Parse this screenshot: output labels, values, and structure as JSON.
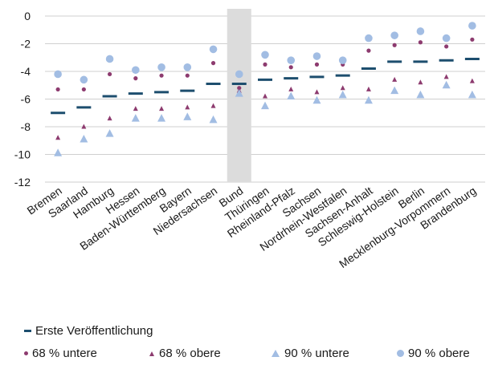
{
  "chart_data": {
    "type": "scatter",
    "categories": [
      "Bremen",
      "Saarland",
      "Hamburg",
      "Hessen",
      "Baden-Württemberg",
      "Bayern",
      "Niedersachsen",
      "Bund",
      "Thüringen",
      "Rheinland-Pfalz",
      "Sachsen",
      "Nordrhein-Westfalen",
      "Sachsen-Anhalt",
      "Schleswig-Holstein",
      "Berlin",
      "Mecklenburg-Vorpommern",
      "Brandenburg"
    ],
    "highlight_category": "Bund",
    "ylim": [
      -12,
      0
    ],
    "yticks": [
      "0",
      "-2",
      "-4",
      "-6",
      "-8",
      "-10",
      "-12"
    ],
    "grid": true,
    "series": [
      {
        "name": "Erste Veröffentlichung",
        "marker": "dash",
        "color": "#1d4e6e",
        "values": [
          -7.0,
          -6.6,
          -5.8,
          -5.6,
          -5.5,
          -5.4,
          -4.9,
          -4.9,
          -4.6,
          -4.5,
          -4.4,
          -4.3,
          -3.8,
          -3.3,
          -3.3,
          -3.2,
          -3.1
        ]
      },
      {
        "name": "68 % untere",
        "marker": "dot-small",
        "color": "#8d3b6f",
        "values": [
          -5.3,
          -5.3,
          -4.2,
          -4.5,
          -4.3,
          -4.3,
          -3.4,
          -5.2,
          -3.5,
          -3.7,
          -3.5,
          -3.5,
          -2.5,
          -2.1,
          -1.9,
          -2.2,
          -1.7
        ]
      },
      {
        "name": "68 % obere",
        "marker": "triangle-small",
        "color": "#8d3b6f",
        "values": [
          -8.8,
          -8.0,
          -7.4,
          -6.7,
          -6.7,
          -6.6,
          -6.5,
          -5.4,
          -5.8,
          -5.3,
          -5.5,
          -5.2,
          -5.3,
          -4.6,
          -4.8,
          -4.4,
          -4.7
        ]
      },
      {
        "name": "90 % untere",
        "marker": "triangle-large",
        "color": "#a2bde3",
        "values": [
          -9.9,
          -8.9,
          -8.5,
          -7.4,
          -7.4,
          -7.3,
          -7.5,
          -5.6,
          -6.5,
          -5.8,
          -6.1,
          -5.7,
          -6.1,
          -5.4,
          -5.7,
          -5.0,
          -5.7
        ]
      },
      {
        "name": "90 % obere",
        "marker": "dot-large",
        "color": "#a2bde3",
        "values": [
          -4.2,
          -4.6,
          -3.1,
          -3.9,
          -3.7,
          -3.7,
          -2.4,
          -4.2,
          -2.8,
          -3.2,
          -2.9,
          -3.2,
          -1.6,
          -1.4,
          -1.1,
          -1.6,
          -0.7
        ]
      }
    ]
  },
  "legend": {
    "first_publication": "Erste Veröffentlichung",
    "lower_68": "68 % untere",
    "upper_68": "68 % obere",
    "lower_90": "90 % untere",
    "upper_90": "90 % obere"
  }
}
